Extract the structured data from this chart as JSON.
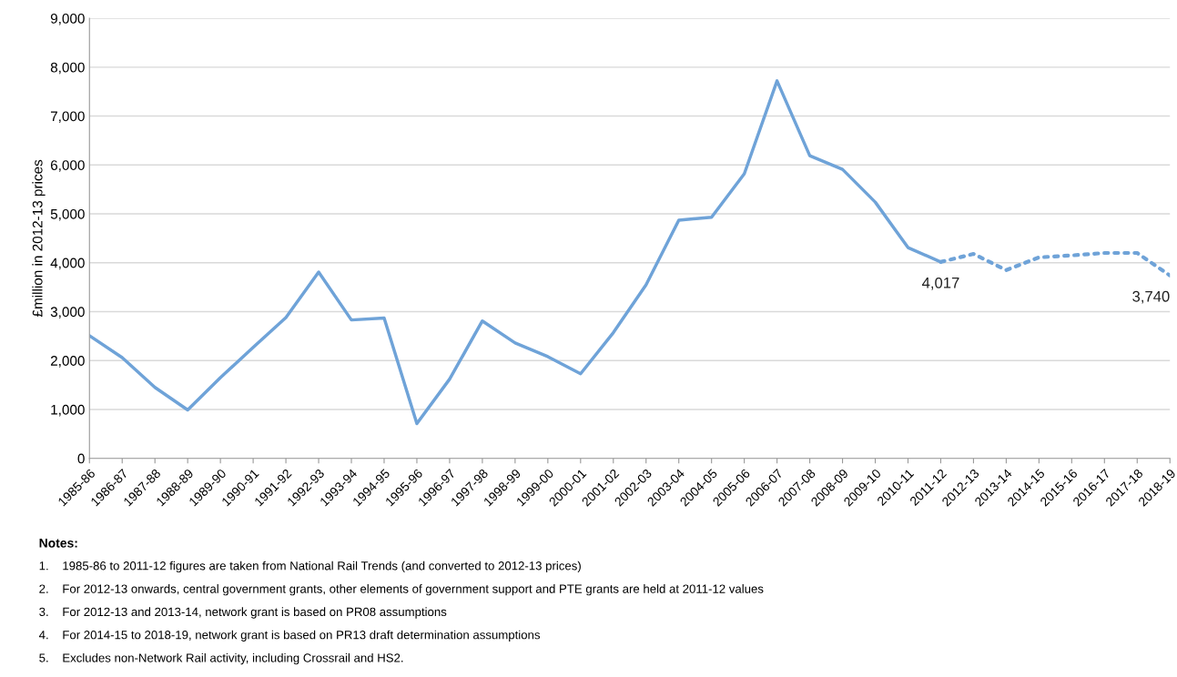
{
  "chart_data": {
    "type": "line",
    "ylabel": "£million in 2012-13 prices",
    "categories": [
      "1985-86",
      "1986-87",
      "1987-88",
      "1988-89",
      "1989-90",
      "1990-91",
      "1991-92",
      "1992-93",
      "1993-94",
      "1994-95",
      "1995-96",
      "1996-97",
      "1997-98",
      "1998-99",
      "1999-00",
      "2000-01",
      "2001-02",
      "2002-03",
      "2003-04",
      "2004-05",
      "2005-06",
      "2006-07",
      "2007-08",
      "2008-09",
      "2009-10",
      "2010-11",
      "2011-12",
      "2012-13",
      "2013-14",
      "2014-15",
      "2015-16",
      "2016-17",
      "2017-18",
      "2018-19"
    ],
    "series": [
      {
        "color": "#6fa3d8",
        "line_style": "solid",
        "values": [
          2510,
          2060,
          1450,
          990,
          1650,
          2270,
          2880,
          3810,
          2830,
          2870,
          710,
          1620,
          2810,
          2360,
          2080,
          1730,
          2570,
          3550,
          4870,
          4930,
          5820,
          7720,
          6190,
          5910,
          5240,
          4310,
          4017,
          null,
          null,
          null,
          null,
          null,
          null,
          null
        ],
        "value_labels": [
          null,
          null,
          null,
          null,
          null,
          null,
          null,
          null,
          null,
          null,
          null,
          null,
          null,
          null,
          null,
          null,
          null,
          null,
          null,
          null,
          null,
          null,
          null,
          null,
          null,
          null,
          "4,017",
          null,
          null,
          null,
          null,
          null,
          null,
          null
        ]
      },
      {
        "color": "#6fa3d8",
        "line_style": "dotted",
        "values": [
          null,
          null,
          null,
          null,
          null,
          null,
          null,
          null,
          null,
          null,
          null,
          null,
          null,
          null,
          null,
          null,
          null,
          null,
          null,
          null,
          null,
          null,
          null,
          null,
          null,
          null,
          4017,
          4180,
          3850,
          4110,
          4150,
          4200,
          4200,
          3740
        ],
        "value_labels": [
          null,
          null,
          null,
          null,
          null,
          null,
          null,
          null,
          null,
          null,
          null,
          null,
          null,
          null,
          null,
          null,
          null,
          null,
          null,
          null,
          null,
          null,
          null,
          null,
          null,
          null,
          null,
          null,
          null,
          null,
          null,
          null,
          null,
          "3,740"
        ]
      }
    ],
    "ylim": [
      0,
      9000
    ],
    "yticks": [
      0,
      {
        "value": 1000,
        "label": "1,000"
      },
      {
        "value": 2000,
        "label": "2,000"
      },
      {
        "value": 3000,
        "label": "3,000"
      },
      {
        "value": 4000,
        "label": "4,000"
      },
      {
        "value": 5000,
        "label": "5,000"
      },
      {
        "value": 6000,
        "label": "6,000"
      },
      {
        "value": 7000,
        "label": "7,000"
      },
      {
        "value": 8000,
        "label": "8,000"
      },
      {
        "value": 9000,
        "label": "9,000"
      }
    ],
    "grid": "y",
    "legend": false,
    "marker": "none",
    "annotations": [
      "Notes:",
      "1.    1985-86 to 2011-12 figures are taken from National Rail Trends (and converted to 2012-13 prices)",
      "2.    For 2012-13 onwards, central government grants, other elements of government support and PTE grants are held at 2011-12 values",
      "3.    For 2012-13 and 2013-14, network grant is based on PR08 assumptions",
      "4.    For 2014-15 to 2018-19, network grant is based on PR13 draft determination assumptions",
      "5.    Excludes non-Network Rail activity, including Crossrail and HS2."
    ]
  }
}
